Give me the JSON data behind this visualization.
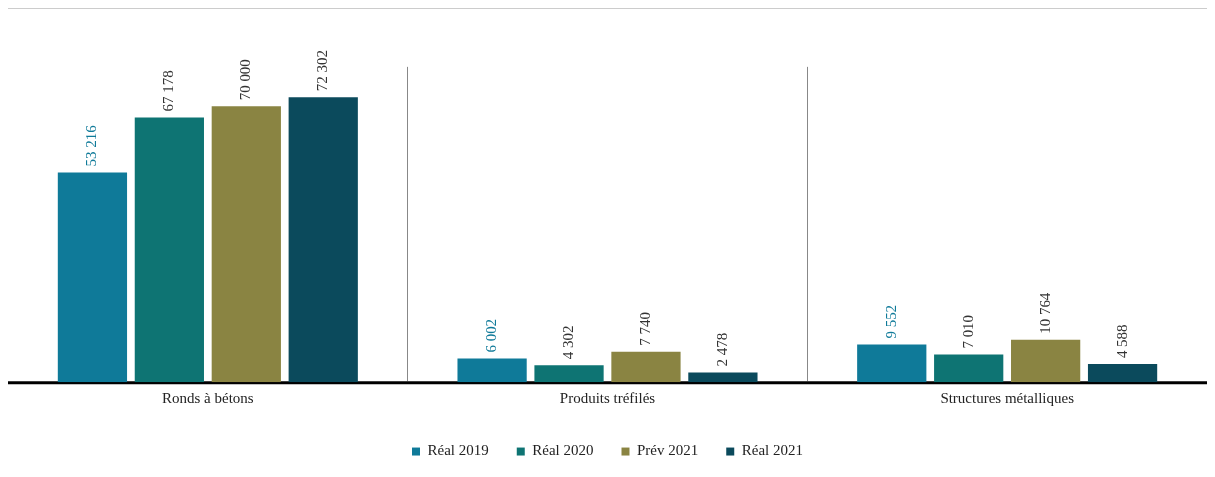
{
  "chart_data": {
    "type": "bar",
    "categories": [
      "Ronds à bétons",
      "Produits tréfilés",
      "Structures métalliques"
    ],
    "series": [
      {
        "name": "Réal 2019",
        "color": "#0f7a99",
        "values": [
          53216,
          6002,
          9552
        ],
        "value_labels": [
          "53 216",
          "6 002",
          "9 552"
        ]
      },
      {
        "name": "Réal 2020",
        "color": "#0e7473",
        "values": [
          67178,
          4302,
          7010
        ],
        "value_labels": [
          "67 178",
          "4 302",
          "7 010"
        ]
      },
      {
        "name": "Prév 2021",
        "color": "#8a8442",
        "values": [
          70000,
          7740,
          10764
        ],
        "value_labels": [
          "70 000",
          "7 740",
          "10 764"
        ]
      },
      {
        "name": "Réal 2021",
        "color": "#0b4a5c",
        "values": [
          72302,
          2478,
          4588
        ],
        "value_labels": [
          "72 302",
          "2 478",
          "4 588"
        ]
      }
    ],
    "grid": "x",
    "legend": "bottom",
    "marker": "square",
    "tick_labels": "x"
  }
}
